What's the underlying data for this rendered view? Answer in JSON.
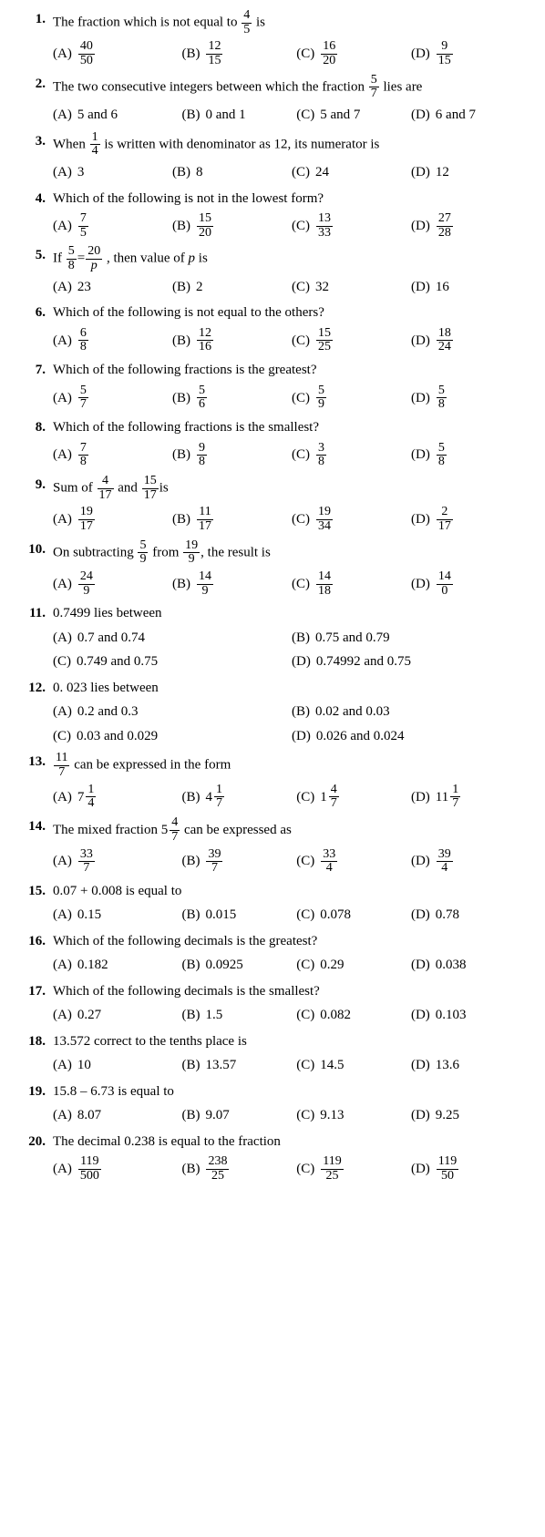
{
  "questions": [
    {
      "num": "1.",
      "stem": [
        "The fraction which is not equal to ",
        {
          "frac": [
            "4",
            "5"
          ]
        },
        " is"
      ],
      "layout": "wD",
      "opts": [
        [
          "(A)",
          {
            "frac": [
              "40",
              "50"
            ]
          }
        ],
        [
          "(B)",
          {
            "frac": [
              "12",
              "15"
            ]
          }
        ],
        [
          "(C)",
          {
            "frac": [
              "16",
              "20"
            ]
          }
        ],
        [
          "(D)",
          {
            "frac": [
              "9",
              "15"
            ]
          }
        ]
      ]
    },
    {
      "num": "2.",
      "stem": [
        "The two consecutive integers between which the fraction ",
        {
          "frac": [
            "5",
            "7"
          ]
        },
        " lies are"
      ],
      "layout": "wD",
      "opts": [
        [
          "(A)",
          "5 and 6"
        ],
        [
          "(B)",
          "0 and 1"
        ],
        [
          "(C)",
          "5 and 7"
        ],
        [
          "(D)",
          "6 and 7"
        ]
      ]
    },
    {
      "num": "3.",
      "stem": [
        "When ",
        {
          "frac": [
            "1",
            "4"
          ]
        },
        " is written with denominator as 12, its numerator is"
      ],
      "layout": "w4",
      "opts": [
        [
          "(A)",
          "3"
        ],
        [
          "(B)",
          "8"
        ],
        [
          "(C)",
          "24"
        ],
        [
          "(D)",
          "12"
        ]
      ]
    },
    {
      "num": "4.",
      "stem": [
        "Which of the following is not in the lowest form?"
      ],
      "layout": "w4",
      "opts": [
        [
          "(A)",
          {
            "frac": [
              "7",
              "5"
            ]
          }
        ],
        [
          "(B)",
          {
            "frac": [
              "15",
              "20"
            ]
          }
        ],
        [
          "(C)",
          {
            "frac": [
              "13",
              "33"
            ]
          }
        ],
        [
          "(D)",
          {
            "frac": [
              "27",
              "28"
            ]
          }
        ]
      ]
    },
    {
      "num": "5.",
      "stem": [
        "If ",
        {
          "frac": [
            "5",
            "8"
          ]
        },
        "=",
        {
          "frac": [
            "20",
            {
              "i": "p"
            }
          ]
        },
        " , then value of ",
        {
          "i": "p"
        },
        " is"
      ],
      "layout": "w4",
      "opts": [
        [
          "(A)",
          "23"
        ],
        [
          "(B)",
          "2"
        ],
        [
          "(C)",
          "32"
        ],
        [
          "(D)",
          "16"
        ]
      ]
    },
    {
      "num": "6.",
      "stem": [
        "Which  of the following is not equal to the others?"
      ],
      "layout": "w4",
      "opts": [
        [
          "(A)",
          {
            "frac": [
              "6",
              "8"
            ]
          }
        ],
        [
          "(B)",
          {
            "frac": [
              "12",
              "16"
            ]
          }
        ],
        [
          "(C)",
          {
            "frac": [
              "15",
              "25"
            ]
          }
        ],
        [
          "(D)",
          {
            "frac": [
              "18",
              "24"
            ]
          }
        ]
      ]
    },
    {
      "num": "7.",
      "stem": [
        "Which of the following fractions is the greatest?"
      ],
      "layout": "w4",
      "opts": [
        [
          "(A)",
          {
            "frac": [
              "5",
              "7"
            ]
          }
        ],
        [
          "(B)",
          {
            "frac": [
              "5",
              "6"
            ]
          }
        ],
        [
          "(C)",
          {
            "frac": [
              "5",
              "9"
            ]
          }
        ],
        [
          "(D)",
          {
            "frac": [
              "5",
              "8"
            ]
          }
        ]
      ]
    },
    {
      "num": "8.",
      "stem": [
        "Which of the following fractions is the smallest?"
      ],
      "layout": "w4",
      "opts": [
        [
          "(A)",
          {
            "frac": [
              "7",
              "8"
            ]
          }
        ],
        [
          "(B)",
          {
            "frac": [
              "9",
              "8"
            ]
          }
        ],
        [
          "(C)",
          {
            "frac": [
              "3",
              "8"
            ]
          }
        ],
        [
          "(D)",
          {
            "frac": [
              "5",
              "8"
            ]
          }
        ]
      ]
    },
    {
      "num": "9.",
      "stem": [
        "Sum of ",
        {
          "frac": [
            "4",
            "17"
          ]
        },
        " and ",
        {
          "frac": [
            "15",
            "17"
          ]
        },
        "is"
      ],
      "layout": "w4",
      "opts": [
        [
          "(A)",
          {
            "frac": [
              "19",
              "17"
            ]
          }
        ],
        [
          "(B)",
          {
            "frac": [
              "11",
              "17"
            ]
          }
        ],
        [
          "(C)",
          {
            "frac": [
              "19",
              "34"
            ]
          }
        ],
        [
          "(D)",
          {
            "frac": [
              "2",
              "17"
            ]
          }
        ]
      ]
    },
    {
      "num": "10.",
      "stem": [
        "On subtracting ",
        {
          "frac": [
            "5",
            "9"
          ]
        },
        " from ",
        {
          "frac": [
            "19",
            "9"
          ]
        },
        ", the result is"
      ],
      "layout": "w4",
      "opts": [
        [
          "(A)",
          {
            "frac": [
              "24",
              "9"
            ]
          }
        ],
        [
          "(B)",
          {
            "frac": [
              "14",
              "9"
            ]
          }
        ],
        [
          "(C)",
          {
            "frac": [
              "14",
              "18"
            ]
          }
        ],
        [
          "(D)",
          {
            "frac": [
              "14",
              "0"
            ]
          }
        ]
      ]
    },
    {
      "num": "11.",
      "stem": [
        "0.7499 lies between"
      ],
      "layout": "w2",
      "opts": [
        [
          "(A)",
          "0.7 and 0.74"
        ],
        [
          "(B)",
          "0.75 and 0.79"
        ],
        [
          "(C)",
          "0.749 and 0.75"
        ],
        [
          "(D)",
          "0.74992 and 0.75"
        ]
      ]
    },
    {
      "num": "12.",
      "stem": [
        "0. 023 lies between"
      ],
      "layout": "w2",
      "opts": [
        [
          "(A)",
          "0.2 and 0.3"
        ],
        [
          "(B)",
          "0.02 and 0.03"
        ],
        [
          "(C)",
          "0.03 and 0.029"
        ],
        [
          "(D)",
          "0.026 and 0.024"
        ]
      ]
    },
    {
      "num": "13.",
      "stem": [
        {
          "frac": [
            "11",
            "7"
          ]
        },
        " can be expressed in the form"
      ],
      "layout": "wD",
      "opts": [
        [
          "(A)",
          {
            "mix": [
              "7",
              "1",
              "4"
            ]
          }
        ],
        [
          "(B)",
          {
            "mix": [
              "4",
              "1",
              "7"
            ]
          }
        ],
        [
          "(C)",
          {
            "mix": [
              "1",
              "4",
              "7"
            ]
          }
        ],
        [
          "(D)",
          {
            "mix": [
              "11",
              "1",
              "7"
            ]
          }
        ]
      ]
    },
    {
      "num": "14.",
      "stem": [
        "The mixed fraction ",
        {
          "mix": [
            "5",
            "4",
            "7"
          ]
        },
        " can be expressed as"
      ],
      "layout": "wD",
      "opts": [
        [
          "(A)",
          {
            "frac": [
              "33",
              "7"
            ]
          }
        ],
        [
          "(B)",
          {
            "frac": [
              "39",
              "7"
            ]
          }
        ],
        [
          "(C)",
          {
            "frac": [
              "33",
              "4"
            ]
          }
        ],
        [
          "(D)",
          {
            "frac": [
              "39",
              "4"
            ]
          }
        ]
      ]
    },
    {
      "num": "15.",
      "stem": [
        "0.07 + 0.008 is equal to"
      ],
      "layout": "wD",
      "opts": [
        [
          "(A)",
          "0.15"
        ],
        [
          "(B)",
          "0.015"
        ],
        [
          "(C)",
          "0.078"
        ],
        [
          "(D)",
          "0.78"
        ]
      ]
    },
    {
      "num": "16.",
      "stem": [
        "Which of the following decimals is the greatest?"
      ],
      "layout": "wD",
      "opts": [
        [
          "(A)",
          "0.182"
        ],
        [
          "(B)",
          "0.0925"
        ],
        [
          "(C)",
          "0.29"
        ],
        [
          "(D)",
          "0.038"
        ]
      ]
    },
    {
      "num": "17.",
      "stem": [
        "Which of the following decimals is the smallest?"
      ],
      "layout": "wD",
      "opts": [
        [
          "(A)",
          "0.27"
        ],
        [
          "(B)",
          "1.5"
        ],
        [
          "(C)",
          "0.082"
        ],
        [
          "(D)",
          "0.103"
        ]
      ]
    },
    {
      "num": "18.",
      "stem": [
        "13.572 correct to the tenths place is"
      ],
      "layout": "wD",
      "opts": [
        [
          "(A)",
          "10"
        ],
        [
          "(B)",
          "13.57"
        ],
        [
          "(C)",
          "14.5"
        ],
        [
          "(D)",
          "13.6"
        ]
      ]
    },
    {
      "num": "19.",
      "stem": [
        "15.8 – 6.73 is equal to"
      ],
      "layout": "wD",
      "opts": [
        [
          "(A)",
          "8.07"
        ],
        [
          "(B)",
          "9.07"
        ],
        [
          "(C)",
          "9.13"
        ],
        [
          "(D)",
          "9.25"
        ]
      ]
    },
    {
      "num": "20.",
      "stem": [
        "The decimal 0.238 is equal to the fraction"
      ],
      "layout": "wD",
      "opts": [
        [
          "(A)",
          {
            "frac": [
              "119",
              "500"
            ]
          }
        ],
        [
          "(B)",
          {
            "frac": [
              "238",
              "25"
            ]
          }
        ],
        [
          "(C)",
          {
            "frac": [
              "119",
              "25"
            ]
          }
        ],
        [
          "(D)",
          {
            "frac": [
              "119",
              "50"
            ]
          }
        ]
      ]
    }
  ]
}
